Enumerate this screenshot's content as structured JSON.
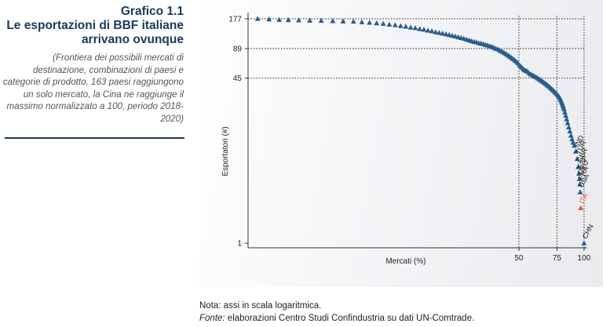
{
  "figure": {
    "label": "Grafico 1.1",
    "title_line1": "Le esportazioni di BBF italiane",
    "title_line2": "arrivano ovunque",
    "subtitle": "(Frontiera dei possibili mercati di destinazione, combinazioni di paesi e categorie di prodotto, 163 paesi raggiungono un solo mercato, la Cina ne raggiunge il massimo normalizzato a 100, periodo 2018-2020)",
    "note": "Nota: assi in scala logaritmica.",
    "fonte_label": "Fonte:",
    "fonte_text": " elaborazioni Centro Studi Confindustria su dati UN-Comtrade."
  },
  "colors": {
    "marker": "#2a5d8a",
    "highlight": "#e8553a",
    "title": "#1a3a5c",
    "guide": "#000000"
  },
  "chart_data": {
    "type": "scatter",
    "xlabel": "Mercati (%)",
    "ylabel": "Esportatori (#)",
    "x_scale": "log",
    "y_scale": "log",
    "xlim": [
      2.8,
      100
    ],
    "ylim": [
      0.9,
      190
    ],
    "x_ticks": [
      50,
      75,
      100
    ],
    "y_ticks": [
      1,
      45,
      89,
      177
    ],
    "guides": {
      "x": [
        50,
        75,
        100
      ],
      "y": [
        45,
        89,
        177
      ]
    },
    "points": [
      [
        3.1,
        177
      ],
      [
        3.5,
        175
      ],
      [
        3.9,
        173
      ],
      [
        4.3,
        172
      ],
      [
        4.8,
        171
      ],
      [
        5.4,
        170
      ],
      [
        6.1,
        169
      ],
      [
        6.9,
        168
      ],
      [
        7.7,
        167
      ],
      [
        8.6,
        166
      ],
      [
        9.4,
        164
      ],
      [
        10.2,
        162
      ],
      [
        11.0,
        160
      ],
      [
        11.8,
        158
      ],
      [
        12.6,
        155
      ],
      [
        13.4,
        153
      ],
      [
        14.2,
        150
      ],
      [
        15.0,
        148
      ],
      [
        15.8,
        145
      ],
      [
        16.6,
        143
      ],
      [
        17.4,
        140
      ],
      [
        18.2,
        138
      ],
      [
        19.0,
        135
      ],
      [
        19.8,
        133
      ],
      [
        20.6,
        130
      ],
      [
        21.4,
        128
      ],
      [
        22.2,
        126
      ],
      [
        23.0,
        124
      ],
      [
        23.8,
        122
      ],
      [
        24.6,
        120
      ],
      [
        25.4,
        118
      ],
      [
        26.2,
        116
      ],
      [
        27.0,
        114
      ],
      [
        27.8,
        112
      ],
      [
        28.6,
        110
      ],
      [
        29.4,
        108
      ],
      [
        30.2,
        106
      ],
      [
        31.0,
        104
      ],
      [
        31.8,
        103
      ],
      [
        32.6,
        101
      ],
      [
        33.4,
        100
      ],
      [
        34.2,
        99
      ],
      [
        35.0,
        97
      ],
      [
        35.8,
        96
      ],
      [
        36.6,
        94
      ],
      [
        37.4,
        93
      ],
      [
        38.2,
        91
      ],
      [
        39.0,
        89
      ],
      [
        39.8,
        88
      ],
      [
        40.6,
        86
      ],
      [
        41.4,
        84
      ],
      [
        42.2,
        82
      ],
      [
        43.0,
        80
      ],
      [
        43.8,
        78
      ],
      [
        44.6,
        76
      ],
      [
        45.4,
        74
      ],
      [
        46.2,
        72
      ],
      [
        47.0,
        70
      ],
      [
        47.8,
        68
      ],
      [
        48.6,
        66
      ],
      [
        49.4,
        64
      ],
      [
        50.2,
        61
      ],
      [
        51.0,
        59
      ],
      [
        51.8,
        57
      ],
      [
        52.6,
        55
      ],
      [
        53.4,
        54
      ],
      [
        54.2,
        53
      ],
      [
        55.0,
        52
      ],
      [
        56.0,
        50
      ],
      [
        57.0,
        49
      ],
      [
        58.0,
        48
      ],
      [
        59.0,
        47
      ],
      [
        60.0,
        46
      ],
      [
        61.0,
        45
      ],
      [
        62.0,
        44
      ],
      [
        63.0,
        43
      ],
      [
        64.0,
        42
      ],
      [
        65.0,
        41
      ],
      [
        66.0,
        40
      ],
      [
        67.0,
        39
      ],
      [
        68.0,
        38
      ],
      [
        69.0,
        37
      ],
      [
        70.0,
        36
      ],
      [
        71.0,
        35
      ],
      [
        72.0,
        34
      ],
      [
        73.0,
        33
      ],
      [
        74.0,
        32
      ],
      [
        75.0,
        31
      ],
      [
        76.0,
        30
      ],
      [
        77.0,
        29
      ],
      [
        77.6,
        28
      ],
      [
        78.2,
        27
      ],
      [
        78.8,
        26
      ],
      [
        79.3,
        25
      ],
      [
        79.8,
        24
      ],
      [
        80.3,
        23
      ],
      [
        80.8,
        22
      ],
      [
        81.5,
        20.5
      ],
      [
        82.3,
        19
      ],
      [
        83.1,
        17.5
      ],
      [
        84.0,
        16
      ],
      [
        85.0,
        14.5
      ],
      [
        86.0,
        13.2
      ],
      [
        87.0,
        12
      ],
      [
        88.0,
        11
      ],
      [
        89.0,
        10.2
      ],
      [
        90.2,
        9.5
      ]
    ],
    "labeled_points": [
      {
        "label": "IND",
        "x": 91.6,
        "y": 8.3
      },
      {
        "label": "TUR",
        "x": 93.0,
        "y": 7.0
      },
      {
        "label": "GBR",
        "x": 94.0,
        "y": 5.8
      },
      {
        "label": "ESP",
        "x": 94.7,
        "y": 5.0
      },
      {
        "label": "DEU",
        "x": 95.2,
        "y": 4.4
      },
      {
        "label": "FRA",
        "x": 95.6,
        "y": 3.9
      },
      {
        "label": "USA",
        "x": 96.0,
        "y": 3.25
      },
      {
        "label": "ITA",
        "x": 96.6,
        "y": 2.25,
        "highlight": true
      },
      {
        "label": "CHN",
        "x": 100,
        "y": 1
      }
    ]
  }
}
